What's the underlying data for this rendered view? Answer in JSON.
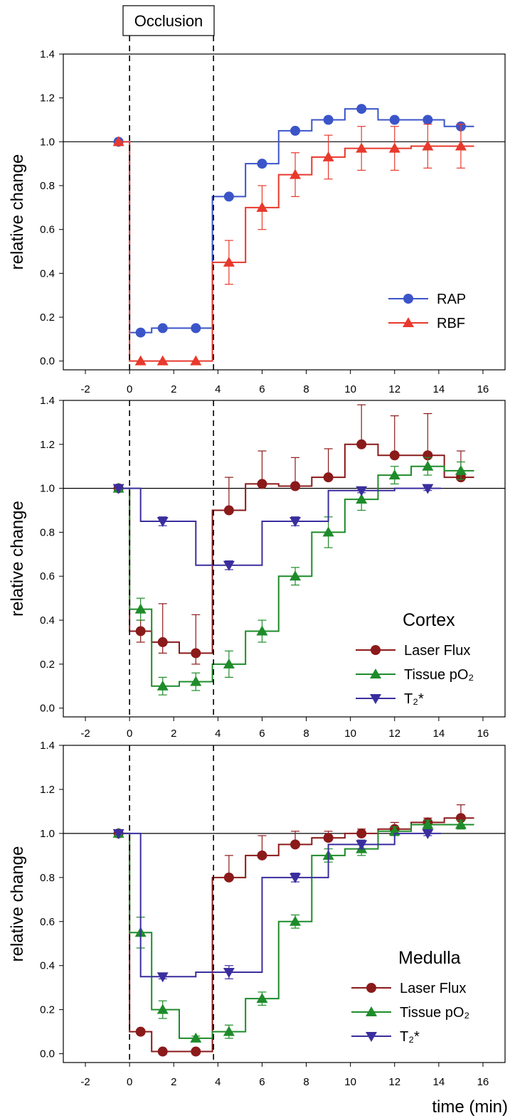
{
  "figure": {
    "occlusion_label": "Occlusion",
    "xlabel": "time (min)"
  },
  "chart_data": [
    {
      "type": "line",
      "panel": "top",
      "ylabel": "relative change",
      "xlim": [
        -3,
        17
      ],
      "ylim": [
        -0.04,
        1.4
      ],
      "x_ticks": [
        -2,
        0,
        2,
        4,
        6,
        8,
        10,
        12,
        14,
        16
      ],
      "y_ticks": [
        "0.0",
        "0.2",
        "0.4",
        "0.6",
        "0.8",
        "1.0",
        "1.2",
        "1.4"
      ],
      "reference_line_y": 1.0,
      "occlusion_window": [
        0,
        3.8
      ],
      "legend_title": "",
      "legend_position": "lower-right",
      "series": [
        {
          "name": "RAP",
          "color": "#3b55c9",
          "marker": "circle",
          "x": [
            -0.5,
            0.5,
            1.5,
            3.0,
            4.5,
            6.0,
            7.5,
            9.0,
            10.5,
            12.0,
            13.5,
            15.0
          ],
          "y": [
            1.0,
            0.13,
            0.15,
            0.15,
            0.75,
            0.9,
            1.05,
            1.1,
            1.15,
            1.1,
            1.1,
            1.07
          ],
          "err_plus": [
            0,
            0.01,
            0.01,
            0.01,
            0.01,
            0.01,
            0.01,
            0.01,
            0.01,
            0.01,
            0.01,
            0.01
          ],
          "err_minus": [
            0,
            0.01,
            0.01,
            0.01,
            0.01,
            0.01,
            0.01,
            0.01,
            0.01,
            0.01,
            0.01,
            0.01
          ]
        },
        {
          "name": "RBF",
          "color": "#e8392c",
          "marker": "triangle-up",
          "x": [
            -0.5,
            0.5,
            1.5,
            3.0,
            4.5,
            6.0,
            7.5,
            9.0,
            10.5,
            12.0,
            13.5,
            15.0
          ],
          "y": [
            1.0,
            0.0,
            0.0,
            0.0,
            0.45,
            0.7,
            0.85,
            0.93,
            0.97,
            0.97,
            0.98,
            0.98
          ],
          "err_plus": [
            0,
            0,
            0,
            0,
            0.1,
            0.1,
            0.1,
            0.1,
            0.1,
            0.1,
            0.1,
            0.1
          ],
          "err_minus": [
            0,
            0,
            0,
            0,
            0.1,
            0.1,
            0.1,
            0.1,
            0.1,
            0.1,
            0.1,
            0.1
          ]
        }
      ]
    },
    {
      "type": "line",
      "panel": "middle",
      "ylabel": "relative change",
      "xlim": [
        -3,
        17
      ],
      "ylim": [
        -0.04,
        1.4
      ],
      "x_ticks": [
        -2,
        0,
        2,
        4,
        6,
        8,
        10,
        12,
        14,
        16
      ],
      "y_ticks": [
        "0.0",
        "0.2",
        "0.4",
        "0.6",
        "0.8",
        "1.0",
        "1.2",
        "1.4"
      ],
      "reference_line_y": 1.0,
      "occlusion_window": [
        0,
        3.8
      ],
      "legend_title": "Cortex",
      "legend_position": "lower-right",
      "series": [
        {
          "name": "Laser Flux",
          "color": "#8b1a1a",
          "marker": "circle",
          "x": [
            -0.5,
            0.5,
            1.5,
            3.0,
            4.5,
            6.0,
            7.5,
            9.0,
            10.5,
            12.0,
            13.5,
            15.0
          ],
          "y": [
            1.0,
            0.35,
            0.3,
            0.25,
            0.9,
            1.02,
            1.01,
            1.05,
            1.2,
            1.15,
            1.15,
            1.05
          ],
          "err_plus": [
            0,
            0.05,
            0.175,
            0.175,
            0.15,
            0.15,
            0.13,
            0.13,
            0.18,
            0.18,
            0.19,
            0.12
          ],
          "err_minus": [
            0,
            0.05,
            0.05,
            0.05,
            0.01,
            0.01,
            0.01,
            0.01,
            0.01,
            0.01,
            0.01,
            0.01
          ]
        },
        {
          "name": "Tissue pO₂",
          "color": "#1e8c2a",
          "marker": "triangle-up",
          "x": [
            -0.5,
            0.5,
            1.5,
            3.0,
            4.5,
            6.0,
            7.5,
            9.0,
            10.5,
            12.0,
            13.5,
            15.0
          ],
          "y": [
            1.0,
            0.45,
            0.1,
            0.12,
            0.2,
            0.35,
            0.6,
            0.8,
            0.95,
            1.06,
            1.1,
            1.08
          ],
          "err_plus": [
            0,
            0.05,
            0.04,
            0.04,
            0.06,
            0.05,
            0.04,
            0.07,
            0.05,
            0.04,
            0.04,
            0.04
          ],
          "err_minus": [
            0,
            0.05,
            0.04,
            0.04,
            0.06,
            0.05,
            0.04,
            0.07,
            0.05,
            0.04,
            0.04,
            0.04
          ]
        },
        {
          "name": "T₂*",
          "color": "#3a2e9e",
          "marker": "triangle-down",
          "x": [
            -0.5,
            1.5,
            4.5,
            7.5,
            10.5,
            13.5
          ],
          "y": [
            1.0,
            0.85,
            0.65,
            0.85,
            0.99,
            1.0
          ],
          "err_plus": [
            0,
            0.02,
            0.02,
            0.02,
            0.01,
            0.01
          ],
          "err_minus": [
            0,
            0.02,
            0.02,
            0.02,
            0.01,
            0.01
          ]
        }
      ]
    },
    {
      "type": "line",
      "panel": "bottom",
      "ylabel": "relative change",
      "xlim": [
        -3,
        17
      ],
      "ylim": [
        -0.04,
        1.4
      ],
      "x_ticks": [
        -2,
        0,
        2,
        4,
        6,
        8,
        10,
        12,
        14,
        16
      ],
      "y_ticks": [
        "0.0",
        "0.2",
        "0.4",
        "0.6",
        "0.8",
        "1.0",
        "1.2",
        "1.4"
      ],
      "reference_line_y": 1.0,
      "occlusion_window": [
        0,
        3.8
      ],
      "legend_title": "Medulla",
      "legend_position": "lower-right",
      "series": [
        {
          "name": "Laser Flux",
          "color": "#8b1a1a",
          "marker": "circle",
          "x": [
            -0.5,
            0.5,
            1.5,
            3.0,
            4.5,
            6.0,
            7.5,
            9.0,
            10.5,
            12.0,
            13.5,
            15.0
          ],
          "y": [
            1.0,
            0.1,
            0.01,
            0.01,
            0.8,
            0.9,
            0.95,
            0.98,
            1.0,
            1.02,
            1.05,
            1.07
          ],
          "err_plus": [
            0,
            0.01,
            0.01,
            0.01,
            0.1,
            0.09,
            0.06,
            0.03,
            0.02,
            0.03,
            0.02,
            0.06
          ],
          "err_minus": [
            0,
            0.01,
            0.01,
            0.01,
            0.01,
            0.01,
            0.01,
            0.01,
            0.01,
            0.01,
            0.01,
            0.01
          ]
        },
        {
          "name": "Tissue pO₂",
          "color": "#1e8c2a",
          "marker": "triangle-up",
          "x": [
            -0.5,
            0.5,
            1.5,
            3.0,
            4.5,
            6.0,
            7.5,
            9.0,
            10.5,
            12.0,
            13.5,
            15.0
          ],
          "y": [
            1.0,
            0.55,
            0.2,
            0.07,
            0.1,
            0.25,
            0.6,
            0.9,
            0.93,
            1.01,
            1.04,
            1.04
          ],
          "err_plus": [
            0,
            0.07,
            0.04,
            0.01,
            0.03,
            0.03,
            0.03,
            0.03,
            0.03,
            0.02,
            0.02,
            0.02
          ],
          "err_minus": [
            0,
            0.07,
            0.04,
            0.01,
            0.03,
            0.03,
            0.03,
            0.03,
            0.03,
            0.02,
            0.02,
            0.02
          ]
        },
        {
          "name": "T₂*",
          "color": "#3a2e9e",
          "marker": "triangle-down",
          "x": [
            -0.5,
            1.5,
            4.5,
            7.5,
            10.5,
            13.5
          ],
          "y": [
            1.0,
            0.35,
            0.37,
            0.8,
            0.95,
            1.0
          ],
          "err_plus": [
            0,
            0.01,
            0.03,
            0.02,
            0.02,
            0.01
          ],
          "err_minus": [
            0,
            0.01,
            0.03,
            0.02,
            0.02,
            0.01
          ]
        }
      ]
    }
  ]
}
